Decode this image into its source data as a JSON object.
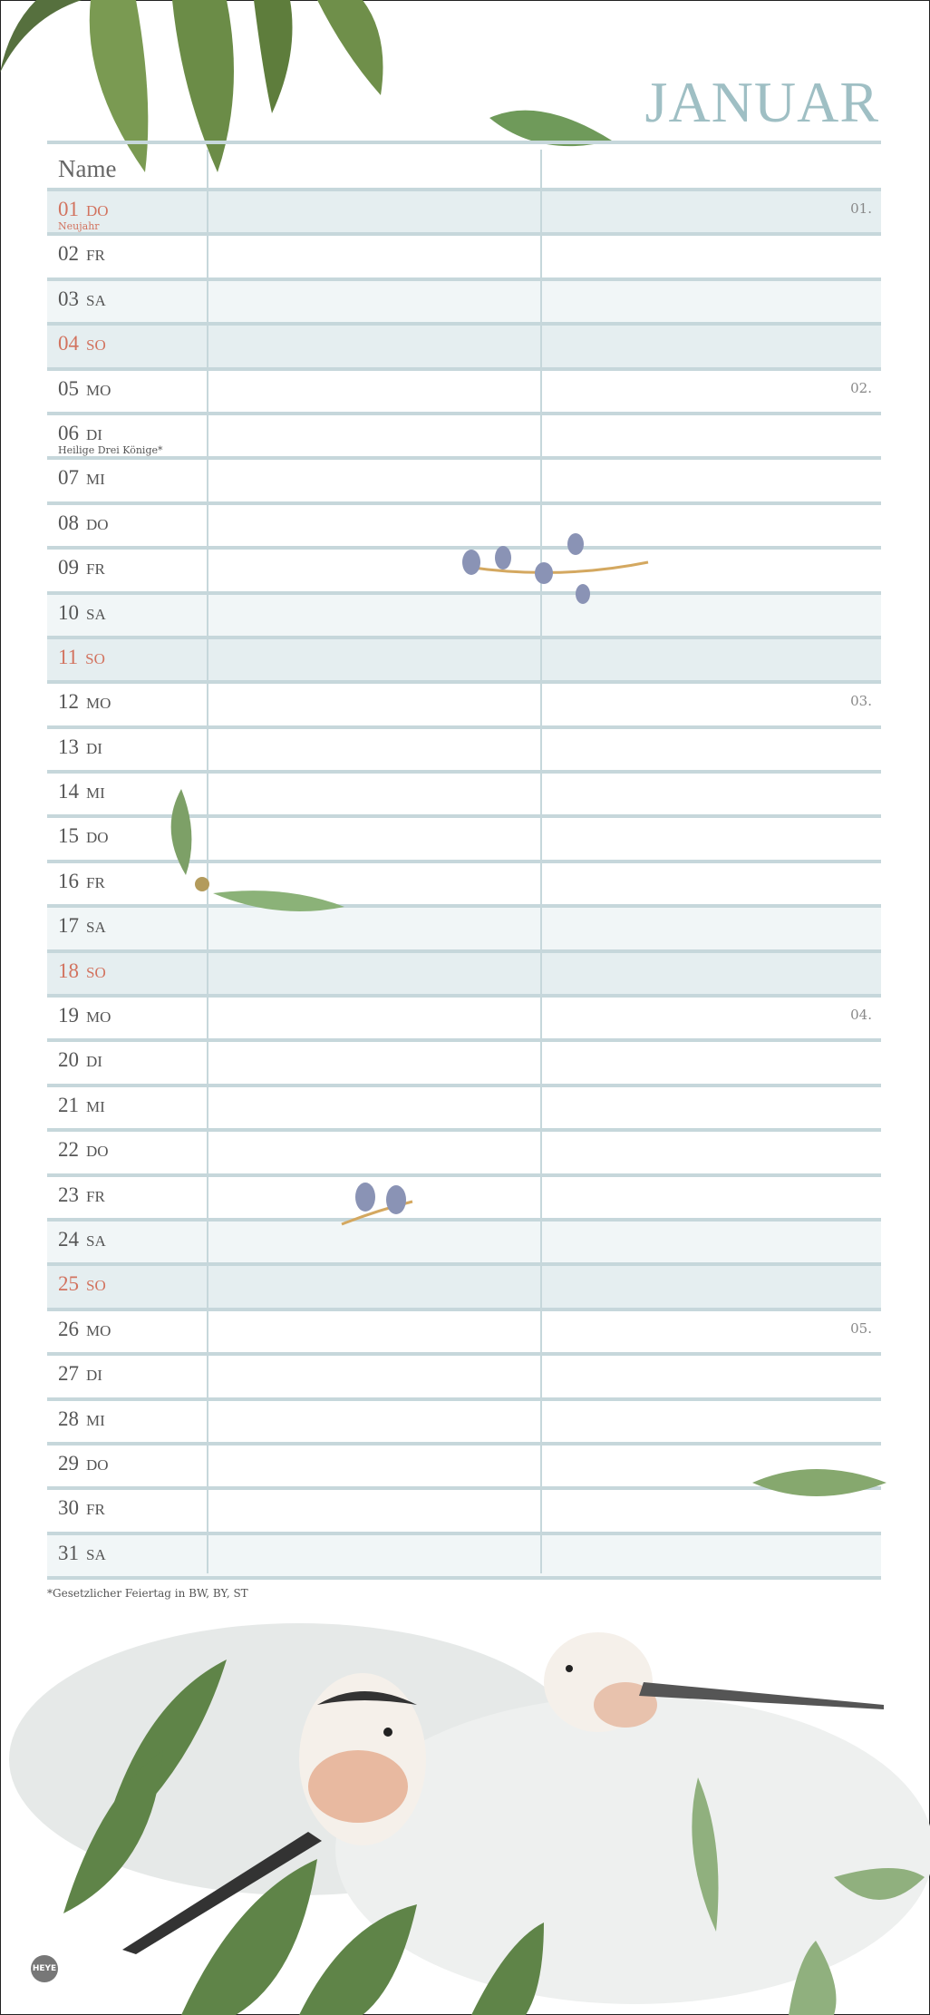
{
  "title": "JANUAR",
  "header": {
    "name_label": "Name"
  },
  "days": [
    {
      "num": "01",
      "wd": "DO",
      "note": "Neujahr",
      "type": "holiday",
      "week": "01."
    },
    {
      "num": "02",
      "wd": "FR"
    },
    {
      "num": "03",
      "wd": "SA",
      "type": "sa"
    },
    {
      "num": "04",
      "wd": "SO",
      "type": "so"
    },
    {
      "num": "05",
      "wd": "MO",
      "week": "02."
    },
    {
      "num": "06",
      "wd": "DI",
      "note": "Heilige Drei Könige*"
    },
    {
      "num": "07",
      "wd": "MI"
    },
    {
      "num": "08",
      "wd": "DO"
    },
    {
      "num": "09",
      "wd": "FR"
    },
    {
      "num": "10",
      "wd": "SA",
      "type": "sa"
    },
    {
      "num": "11",
      "wd": "SO",
      "type": "so"
    },
    {
      "num": "12",
      "wd": "MO",
      "week": "03."
    },
    {
      "num": "13",
      "wd": "DI"
    },
    {
      "num": "14",
      "wd": "MI"
    },
    {
      "num": "15",
      "wd": "DO"
    },
    {
      "num": "16",
      "wd": "FR"
    },
    {
      "num": "17",
      "wd": "SA",
      "type": "sa"
    },
    {
      "num": "18",
      "wd": "SO",
      "type": "so"
    },
    {
      "num": "19",
      "wd": "MO",
      "week": "04."
    },
    {
      "num": "20",
      "wd": "DI"
    },
    {
      "num": "21",
      "wd": "MI"
    },
    {
      "num": "22",
      "wd": "DO"
    },
    {
      "num": "23",
      "wd": "FR"
    },
    {
      "num": "24",
      "wd": "SA",
      "type": "sa"
    },
    {
      "num": "25",
      "wd": "SO",
      "type": "so"
    },
    {
      "num": "26",
      "wd": "MO",
      "week": "05."
    },
    {
      "num": "27",
      "wd": "DI"
    },
    {
      "num": "28",
      "wd": "MI"
    },
    {
      "num": "29",
      "wd": "DO"
    },
    {
      "num": "30",
      "wd": "FR"
    },
    {
      "num": "31",
      "wd": "SA",
      "type": "sa"
    }
  ],
  "footnote": "*Gesetzlicher Feiertag in BW, BY, ST",
  "publisher_logo": "HEYE",
  "colors": {
    "accent": "#9fbfc4",
    "holiday": "#d2735f",
    "rule": "#c6d7db",
    "sunday_shade": "#e5eef0",
    "saturday_shade": "#f1f6f7"
  }
}
